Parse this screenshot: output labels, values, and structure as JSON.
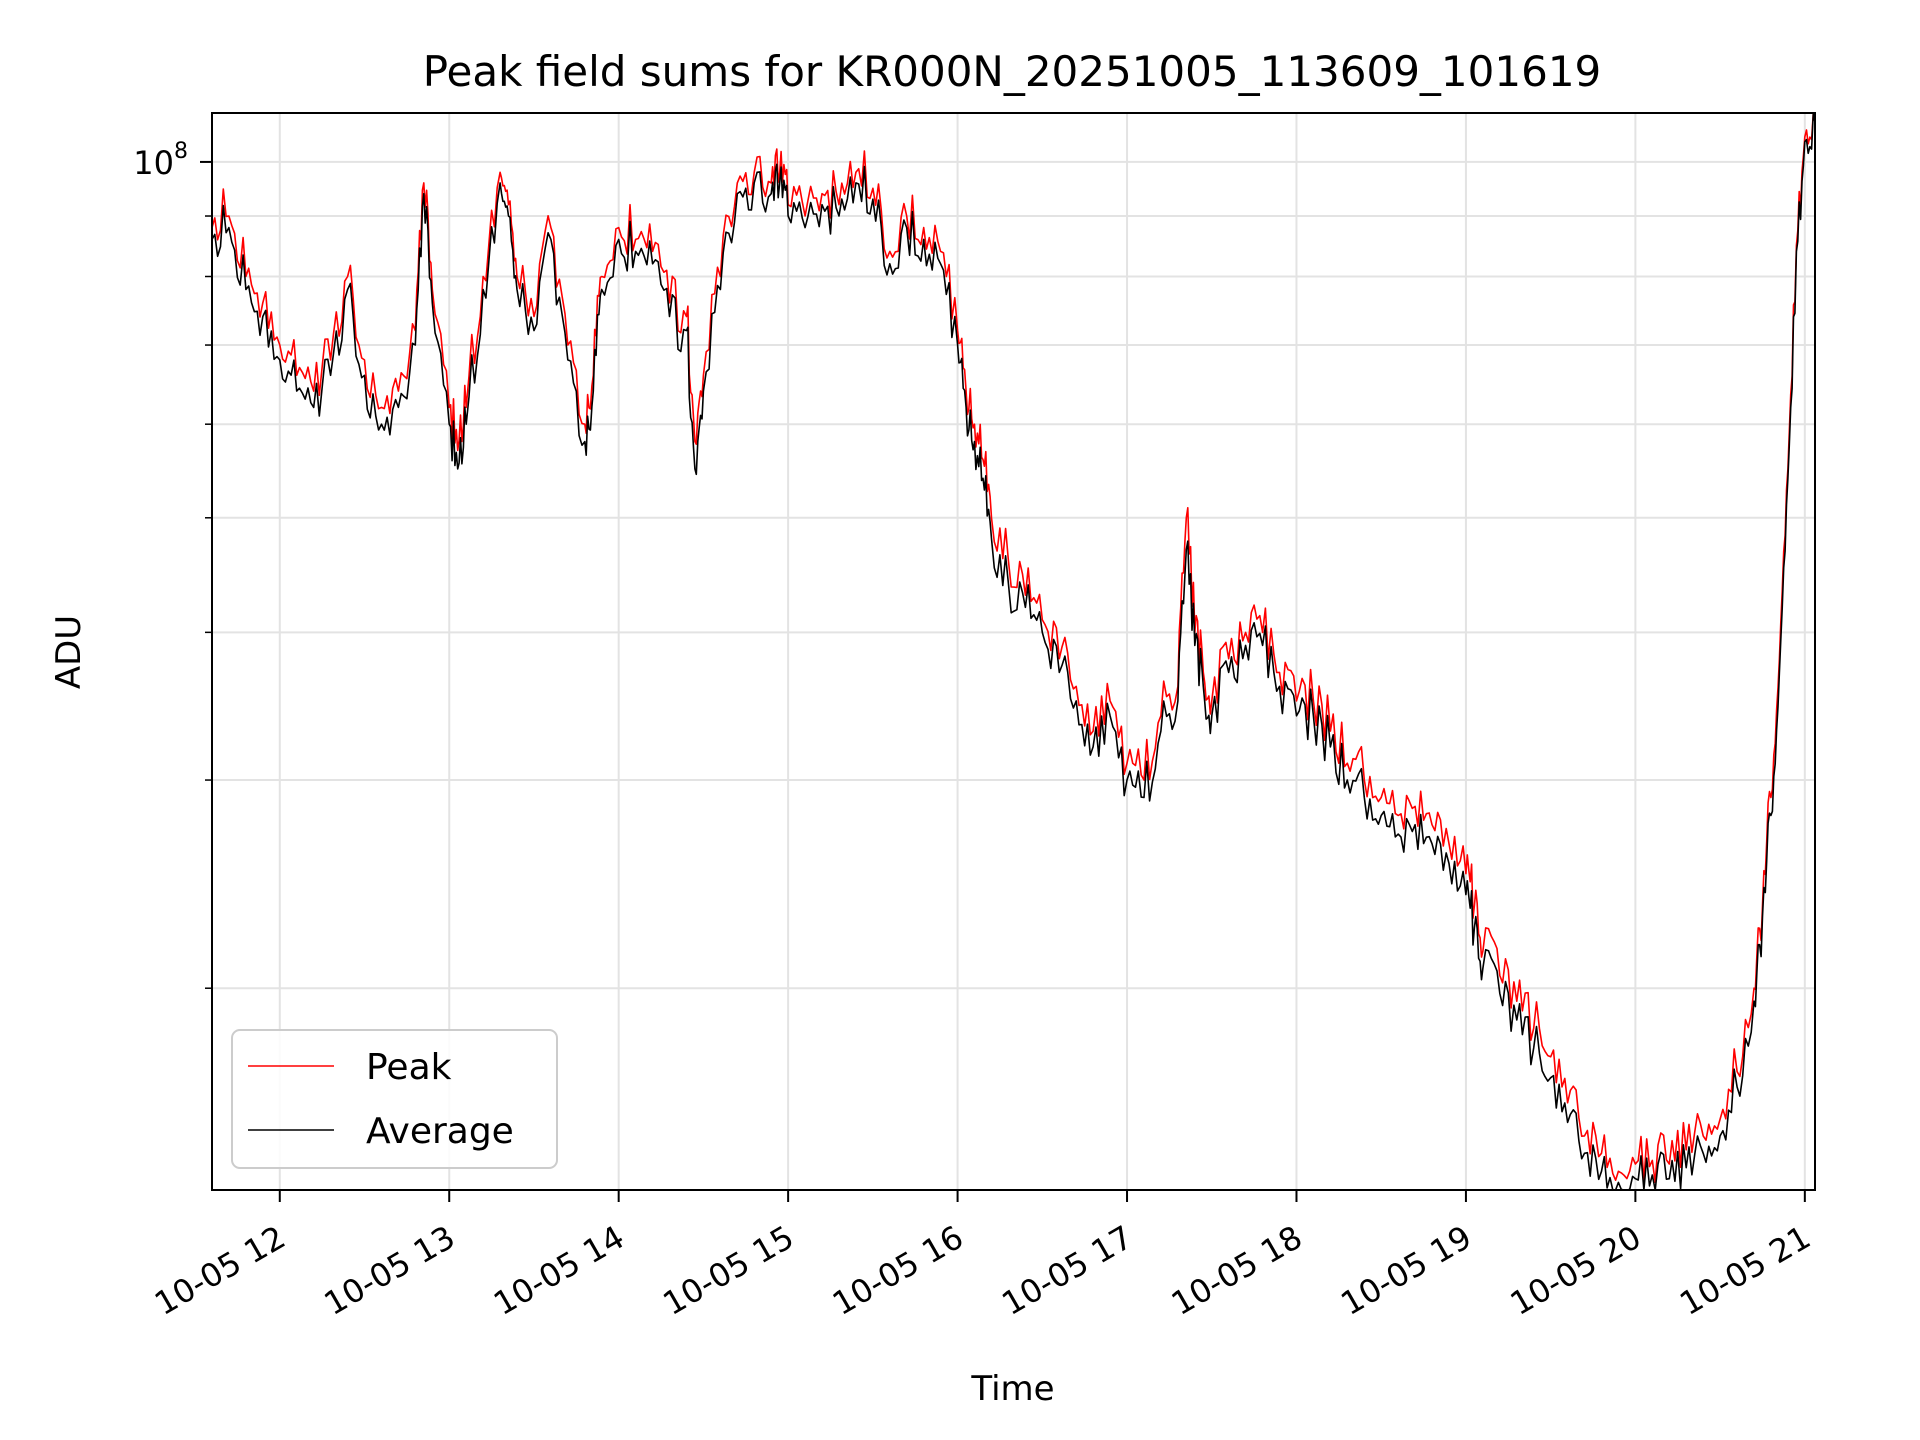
{
  "chart_data": {
    "type": "line",
    "title": "Peak field sums for KR000N_20251005_113609_101619",
    "xlabel": "Time",
    "ylabel": "ADU",
    "yscale": "log",
    "ylim": [
      13500000,
      110000000
    ],
    "xlim_hours": [
      11.6,
      21.06
    ],
    "grid": true,
    "legend_location": "lower-left",
    "x_ticks": [
      {
        "hour": 12,
        "label": "10-05 12"
      },
      {
        "hour": 13,
        "label": "10-05 13"
      },
      {
        "hour": 14,
        "label": "10-05 14"
      },
      {
        "hour": 15,
        "label": "10-05 15"
      },
      {
        "hour": 16,
        "label": "10-05 16"
      },
      {
        "hour": 17,
        "label": "10-05 17"
      },
      {
        "hour": 18,
        "label": "10-05 18"
      },
      {
        "hour": 19,
        "label": "10-05 19"
      },
      {
        "hour": 20,
        "label": "10-05 20"
      },
      {
        "hour": 21,
        "label": "10-05 21"
      }
    ],
    "y_major_ticks": [
      {
        "value": 100000000,
        "base": "10",
        "exp": "8"
      }
    ],
    "y_minor_ticks": [
      20000000,
      30000000,
      40000000,
      50000000,
      60000000,
      70000000,
      80000000,
      90000000
    ],
    "x_hours": [
      11.6,
      11.7,
      11.8,
      11.9,
      12.0,
      12.1,
      12.2,
      12.3,
      12.4,
      12.5,
      12.6,
      12.7,
      12.8,
      12.85,
      12.9,
      13.0,
      13.05,
      13.1,
      13.2,
      13.3,
      13.35,
      13.4,
      13.5,
      13.6,
      13.7,
      13.8,
      13.85,
      13.9,
      14.0,
      14.1,
      14.2,
      14.3,
      14.4,
      14.45,
      14.5,
      14.6,
      14.7,
      14.8,
      14.9,
      14.95,
      15.0,
      15.1,
      15.2,
      15.3,
      15.4,
      15.5,
      15.6,
      15.7,
      15.8,
      15.9,
      16.0,
      16.05,
      16.1,
      16.15,
      16.2,
      16.3,
      16.4,
      16.5,
      16.6,
      16.7,
      16.8,
      16.9,
      17.0,
      17.1,
      17.2,
      17.3,
      17.35,
      17.4,
      17.45,
      17.5,
      17.6,
      17.7,
      17.8,
      17.9,
      18.0,
      18.1,
      18.2,
      18.3,
      18.4,
      18.5,
      18.6,
      18.7,
      18.8,
      18.9,
      19.0,
      19.05,
      19.1,
      19.2,
      19.3,
      19.4,
      19.5,
      19.6,
      19.7,
      19.8,
      19.9,
      20.0,
      20.1,
      20.2,
      20.3,
      20.4,
      20.5,
      20.6,
      20.7,
      20.75,
      20.8,
      20.85,
      20.9,
      20.95,
      21.0,
      21.06
    ],
    "series": [
      {
        "name": "Peak",
        "color": "#ff0000",
        "values": [
          88000000,
          90000000,
          80000000,
          76000000,
          70000000,
          66000000,
          64000000,
          68000000,
          80000000,
          68000000,
          62000000,
          64000000,
          72000000,
          96000000,
          78000000,
          62000000,
          57000000,
          62000000,
          80000000,
          98000000,
          92000000,
          80000000,
          74000000,
          88000000,
          70000000,
          60000000,
          66000000,
          80000000,
          88000000,
          86000000,
          84000000,
          76000000,
          74000000,
          58000000,
          66000000,
          80000000,
          96000000,
          98000000,
          96000000,
          98000000,
          92000000,
          90000000,
          94000000,
          92000000,
          98000000,
          95000000,
          84000000,
          90000000,
          88000000,
          84000000,
          72000000,
          64000000,
          60000000,
          56000000,
          50000000,
          46000000,
          43000000,
          41000000,
          38000000,
          36000000,
          33000000,
          35000000,
          31000000,
          30000000,
          34000000,
          36000000,
          50000000,
          40000000,
          37000000,
          35000000,
          38000000,
          40000000,
          40000000,
          37000000,
          35000000,
          35000000,
          33000000,
          31000000,
          30000000,
          29000000,
          28000000,
          28500000,
          27500000,
          26500000,
          25000000,
          23500000,
          21500000,
          20500000,
          19500000,
          18500000,
          17500000,
          16000000,
          15000000,
          14500000,
          14000000,
          14200000,
          14300000,
          14200000,
          14600000,
          15000000,
          15500000,
          17000000,
          20000000,
          23500000,
          29000000,
          38000000,
          55000000,
          85000000,
          105000000,
          109000000
        ]
      },
      {
        "name": "Average",
        "color": "#000000",
        "values": [
          86000000,
          88000000,
          78000000,
          74000000,
          68000000,
          64000000,
          62000000,
          66000000,
          78000000,
          66000000,
          60000000,
          62000000,
          70000000,
          94000000,
          76000000,
          60000000,
          55000000,
          60000000,
          78000000,
          96000000,
          90000000,
          78000000,
          72000000,
          86000000,
          68000000,
          58000000,
          64000000,
          78000000,
          86000000,
          84000000,
          82000000,
          74000000,
          72000000,
          55000000,
          64000000,
          78000000,
          94000000,
          96000000,
          94000000,
          96000000,
          90000000,
          88000000,
          92000000,
          90000000,
          96000000,
          93000000,
          82000000,
          88000000,
          86000000,
          82000000,
          70000000,
          62000000,
          58000000,
          54000000,
          48000000,
          44000000,
          42000000,
          40000000,
          37000000,
          35000000,
          32000000,
          34000000,
          30000000,
          29000000,
          33000000,
          35000000,
          47000000,
          39000000,
          36000000,
          34000000,
          37000000,
          39000000,
          39000000,
          36000000,
          34000000,
          34000000,
          32000000,
          30000000,
          29000000,
          28000000,
          27000000,
          27500000,
          26500000,
          25500000,
          24000000,
          22500000,
          20800000,
          19800000,
          18800000,
          17800000,
          16800000,
          15400000,
          14500000,
          14000000,
          13700000,
          13800000,
          13900000,
          13800000,
          14100000,
          14500000,
          15000000,
          16500000,
          19500000,
          23000000,
          28000000,
          37000000,
          54000000,
          84000000,
          104000000,
          108000000
        ]
      }
    ]
  }
}
